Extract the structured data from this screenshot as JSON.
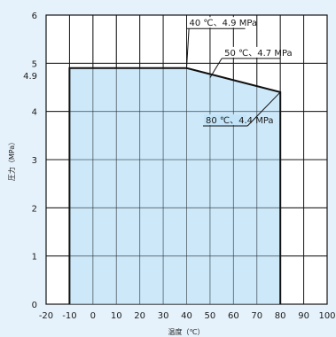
{
  "chart_data": {
    "type": "area",
    "title": "",
    "xlabel": "温度（℃）",
    "ylabel": "圧力（MPa）",
    "xlim": [
      -20,
      100
    ],
    "ylim": [
      0,
      6
    ],
    "x_ticks": [
      "-20",
      "-10",
      "0",
      "10",
      "20",
      "30",
      "40",
      "50",
      "60",
      "70",
      "80",
      "90",
      "100"
    ],
    "y_ticks": [
      "0",
      "1",
      "2",
      "3",
      "4",
      "5",
      "6"
    ],
    "y_extra_tick": "4.9",
    "grid": true,
    "series": [
      {
        "x": [
          -10,
          -10,
          40,
          80,
          80
        ],
        "y": [
          0,
          4.9,
          4.9,
          4.4,
          0
        ]
      }
    ],
    "annotations": [
      {
        "text": "40 ℃、4.9 MPa",
        "x": 40,
        "y": 4.9
      },
      {
        "text": "50 ℃、4.7 MPa",
        "x": 50,
        "y": 4.7
      },
      {
        "text": "80 ℃、4.4 MPa",
        "x": 80,
        "y": 4.4
      }
    ],
    "colors": {
      "fill": "#c3e4f8",
      "line": "#111111",
      "grid": "#1a1a1a",
      "plot_bg": "#ffffff"
    }
  }
}
